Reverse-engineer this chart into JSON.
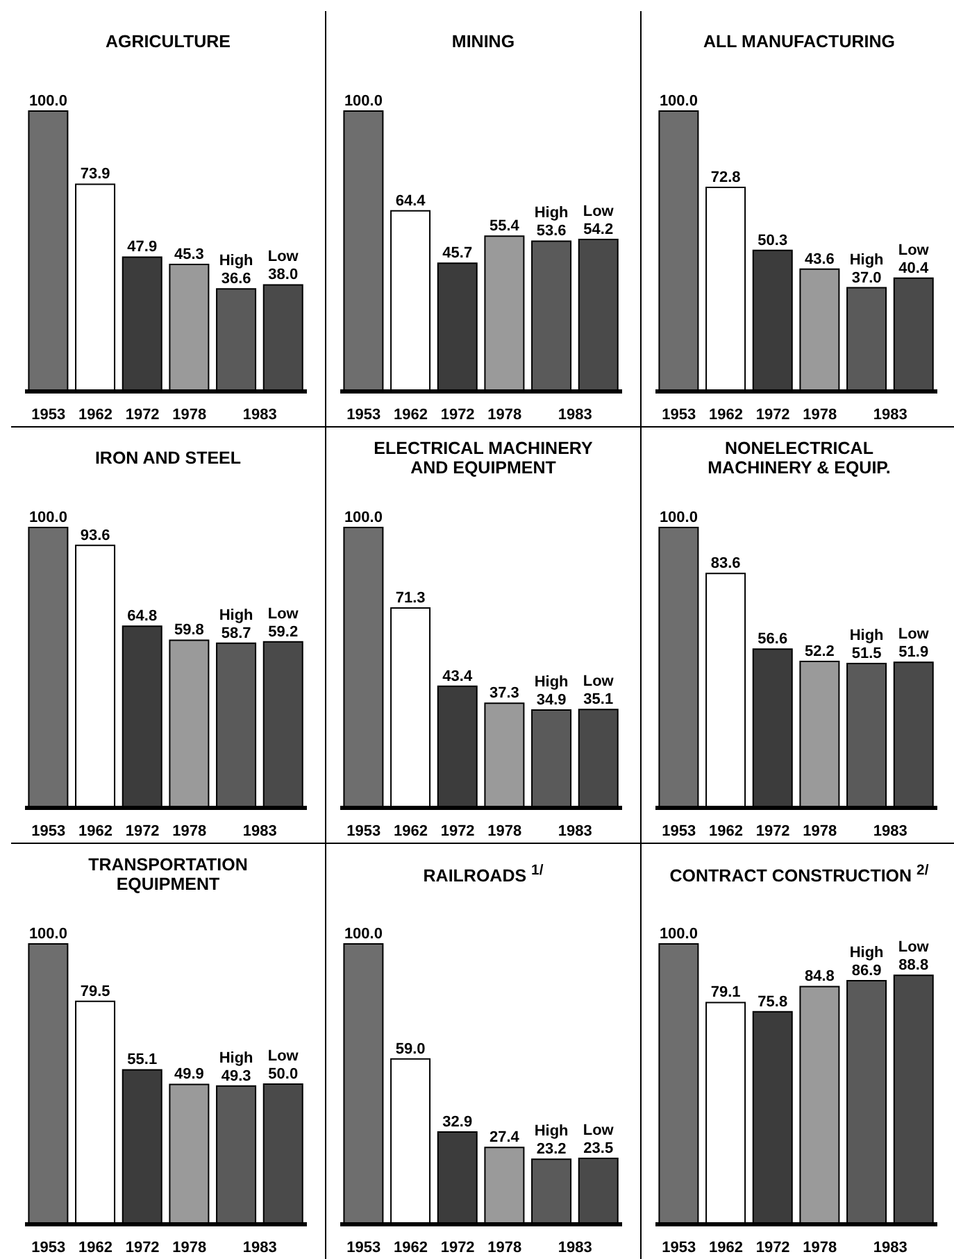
{
  "chart_data": [
    {
      "type": "bar",
      "title": "AGRICULTURE",
      "annotations": [
        "1983"
      ],
      "categories": [
        "1953",
        "1962",
        "1972",
        "1978",
        null,
        null
      ],
      "values": [
        100.0,
        73.9,
        47.9,
        45.3,
        36.6,
        38.0
      ],
      "value_labels": [
        "100.0",
        "73.9",
        "47.9",
        "45.3",
        "High\n36.6",
        "Low\n38.0"
      ],
      "colors": [
        "#6e6e6e",
        "#ffffff",
        "#3c3c3c",
        "#9a9a9a",
        "#5a5a5a",
        "#4a4a4a"
      ]
    },
    {
      "type": "bar",
      "title": "MINING",
      "annotations": [
        "1983"
      ],
      "categories": [
        "1953",
        "1962",
        "1972",
        "1978",
        null,
        null
      ],
      "values": [
        100.0,
        64.4,
        45.7,
        55.4,
        53.6,
        54.2
      ],
      "value_labels": [
        "100.0",
        "64.4",
        "45.7",
        "55.4",
        "High\n53.6",
        "Low\n54.2"
      ],
      "colors": [
        "#6e6e6e",
        "#ffffff",
        "#3c3c3c",
        "#9a9a9a",
        "#5a5a5a",
        "#4a4a4a"
      ]
    },
    {
      "type": "bar",
      "title": "ALL MANUFACTURING",
      "annotations": [
        "1983"
      ],
      "categories": [
        "1953",
        "1962",
        "1972",
        "1978",
        null,
        null
      ],
      "values": [
        100.0,
        72.8,
        50.3,
        43.6,
        37.0,
        40.4
      ],
      "value_labels": [
        "100.0",
        "72.8",
        "50.3",
        "43.6",
        "High\n37.0",
        "Low\n40.4"
      ],
      "colors": [
        "#6e6e6e",
        "#ffffff",
        "#3c3c3c",
        "#9a9a9a",
        "#5a5a5a",
        "#4a4a4a"
      ]
    },
    {
      "type": "bar",
      "title": "IRON AND STEEL",
      "annotations": [
        "1983"
      ],
      "categories": [
        "1953",
        "1962",
        "1972",
        "1978",
        null,
        null
      ],
      "values": [
        100.0,
        93.6,
        64.8,
        59.8,
        58.7,
        59.2
      ],
      "value_labels": [
        "100.0",
        "93.6",
        "64.8",
        "59.8",
        "High\n58.7",
        "Low\n59.2"
      ],
      "colors": [
        "#6e6e6e",
        "#ffffff",
        "#3c3c3c",
        "#9a9a9a",
        "#5a5a5a",
        "#4a4a4a"
      ]
    },
    {
      "type": "bar",
      "title": "ELECTRICAL MACHINERY\nAND EQUIPMENT",
      "annotations": [
        "1983"
      ],
      "categories": [
        "1953",
        "1962",
        "1972",
        "1978",
        null,
        null
      ],
      "values": [
        100.0,
        71.3,
        43.4,
        37.3,
        34.9,
        35.1
      ],
      "value_labels": [
        "100.0",
        "71.3",
        "43.4",
        "37.3",
        "High\n34.9",
        "Low\n35.1"
      ],
      "colors": [
        "#6e6e6e",
        "#ffffff",
        "#3c3c3c",
        "#9a9a9a",
        "#5a5a5a",
        "#4a4a4a"
      ]
    },
    {
      "type": "bar",
      "title": "NONELECTRICAL\nMACHINERY & EQUIP.",
      "annotations": [
        "1983"
      ],
      "categories": [
        "1953",
        "1962",
        "1972",
        "1978",
        null,
        null
      ],
      "values": [
        100.0,
        83.6,
        56.6,
        52.2,
        51.5,
        51.9
      ],
      "value_labels": [
        "100.0",
        "83.6",
        "56.6",
        "52.2",
        "High\n51.5",
        "Low\n51.9"
      ],
      "colors": [
        "#6e6e6e",
        "#ffffff",
        "#3c3c3c",
        "#9a9a9a",
        "#5a5a5a",
        "#4a4a4a"
      ]
    },
    {
      "type": "bar",
      "title": "TRANSPORTATION\nEQUIPMENT",
      "annotations": [
        "1983"
      ],
      "categories": [
        "1953",
        "1962",
        "1972",
        "1978",
        null,
        null
      ],
      "values": [
        100.0,
        79.5,
        55.1,
        49.9,
        49.3,
        50.0
      ],
      "value_labels": [
        "100.0",
        "79.5",
        "55.1",
        "49.9",
        "High\n49.3",
        "Low\n50.0"
      ],
      "colors": [
        "#6e6e6e",
        "#ffffff",
        "#3c3c3c",
        "#9a9a9a",
        "#5a5a5a",
        "#4a4a4a"
      ]
    },
    {
      "type": "bar",
      "title": "RAILROADS $^{1/}$",
      "annotations": [
        "1983"
      ],
      "categories": [
        "1953",
        "1962",
        "1972",
        "1978",
        null,
        null
      ],
      "values": [
        100.0,
        59.0,
        32.9,
        27.4,
        23.2,
        23.5
      ],
      "value_labels": [
        "100.0",
        "59.0",
        "32.9",
        "27.4",
        "High\n23.2",
        "Low\n23.5"
      ],
      "colors": [
        "#6e6e6e",
        "#ffffff",
        "#3c3c3c",
        "#9a9a9a",
        "#5a5a5a",
        "#4a4a4a"
      ]
    },
    {
      "type": "bar",
      "title": "CONTRACT CONSTRUCTION $^{2/}$",
      "annotations": [
        "1983"
      ],
      "categories": [
        "1953",
        "1962",
        "1972",
        "1978",
        null,
        null
      ],
      "values": [
        100.0,
        79.1,
        75.8,
        84.8,
        86.9,
        88.8
      ],
      "value_labels": [
        "100.0",
        "79.1",
        "75.8",
        "84.8",
        "High\n86.9",
        "Low\n88.8"
      ],
      "colors": [
        "#6e6e6e",
        "#ffffff",
        "#3c3c3c",
        "#9a9a9a",
        "#5a5a5a",
        "#4a4a4a"
      ]
    }
  ]
}
